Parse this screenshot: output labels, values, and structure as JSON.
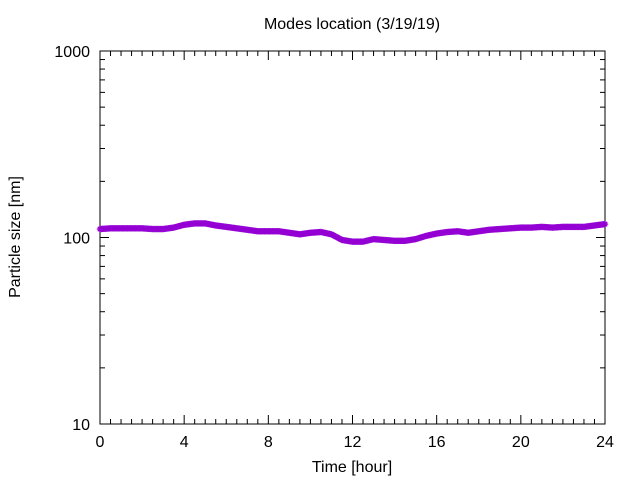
{
  "chart_data": {
    "type": "scatter",
    "title": "Modes location (3/19/19)",
    "xlabel": "Time [hour]",
    "ylabel": "Particle size [nm]",
    "xlim": [
      0,
      24
    ],
    "ylim": [
      10,
      1000
    ],
    "yscale": "log",
    "xticks": [
      0,
      4,
      8,
      12,
      16,
      20,
      24
    ],
    "xtick_labels": [
      "0",
      "4",
      "8",
      "12",
      "16",
      "20",
      "24"
    ],
    "yticks": [
      10,
      100,
      1000
    ],
    "ytick_labels": [
      "10",
      "100",
      "1000"
    ],
    "grid": false,
    "legend": "none",
    "color": "#9400d3",
    "marker": "star",
    "series": [
      {
        "x": [
          0,
          0.5,
          1,
          1.5,
          2,
          2.5,
          3,
          3.5,
          4,
          4.5,
          5,
          5.5,
          6,
          6.5,
          7,
          7.5,
          8,
          8.5,
          9,
          9.5,
          10,
          10.5,
          11,
          11.5,
          12,
          12.5,
          13,
          13.5,
          14,
          14.5,
          15,
          15.5,
          16,
          16.5,
          17,
          17.5,
          18,
          18.5,
          19,
          19.5,
          20,
          20.5,
          21,
          21.5,
          22,
          22.5,
          23,
          23.5,
          24
        ],
        "y": [
          111,
          112,
          112,
          112,
          112,
          111,
          111,
          113,
          117,
          119,
          119,
          116,
          114,
          112,
          110,
          108,
          108,
          108,
          106,
          104,
          106,
          107,
          104,
          97,
          95,
          95,
          98,
          97,
          96,
          96,
          98,
          102,
          105,
          107,
          108,
          106,
          108,
          110,
          111,
          112,
          113,
          113,
          114,
          113,
          114,
          114,
          114,
          116,
          118
        ]
      }
    ]
  }
}
